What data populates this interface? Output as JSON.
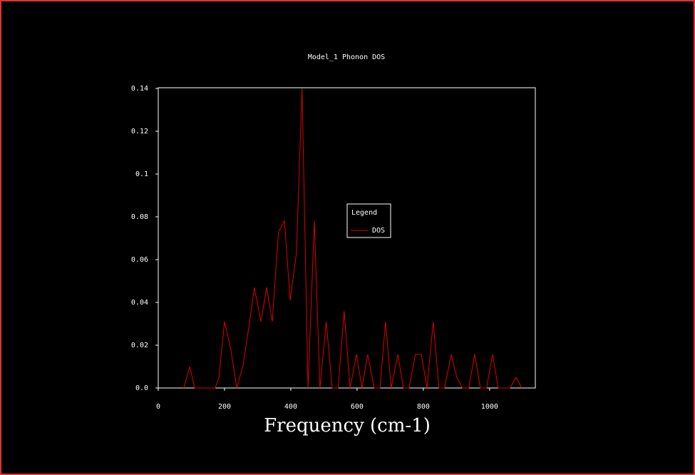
{
  "chart_data": {
    "type": "line",
    "title": "Model_1 Phonon DOS",
    "x_label": "Frequency (cm-1)",
    "legend_title": "Legend",
    "x": [
      77,
      95,
      110,
      172,
      183,
      200,
      219,
      237,
      256,
      273,
      290,
      310,
      327,
      344,
      363,
      381,
      398,
      417,
      434,
      452,
      471,
      488,
      507,
      525,
      543,
      561,
      579,
      598,
      615,
      632,
      652,
      669,
      686,
      703,
      723,
      740,
      757,
      776,
      794,
      811,
      830,
      847,
      864,
      884,
      901,
      918,
      937,
      955,
      972,
      991,
      1009,
      1026,
      1045,
      1062,
      1080,
      1097
    ],
    "series": [
      {
        "name": "DOS",
        "color": "#e00000",
        "values": [
          0,
          0.01,
          0,
          0,
          0.0047,
          0.031,
          0.018,
          0,
          0.0107,
          0.028,
          0.047,
          0.031,
          0.047,
          0.031,
          0.073,
          0.078,
          0.041,
          0.063,
          0.14,
          0,
          0.078,
          0,
          0.031,
          0,
          0,
          0.036,
          0,
          0.0157,
          0,
          0.0157,
          0,
          0,
          0.031,
          0,
          0.0157,
          0,
          0,
          0.0157,
          0.0157,
          0,
          0.031,
          0,
          0,
          0.0157,
          0.005,
          0,
          0,
          0.0157,
          0,
          0,
          0.0157,
          0,
          0,
          0,
          0.005,
          0
        ]
      }
    ],
    "xlim": [
      0,
      1138
    ],
    "xticks": [
      0,
      200,
      400,
      600,
      800,
      1000
    ],
    "ylim": [
      0,
      0.14
    ],
    "yticks": [
      {
        "value": 0,
        "label": "0.0"
      },
      0.02,
      0.04,
      0.06,
      0.08,
      0.1,
      0.12,
      0.14
    ]
  }
}
